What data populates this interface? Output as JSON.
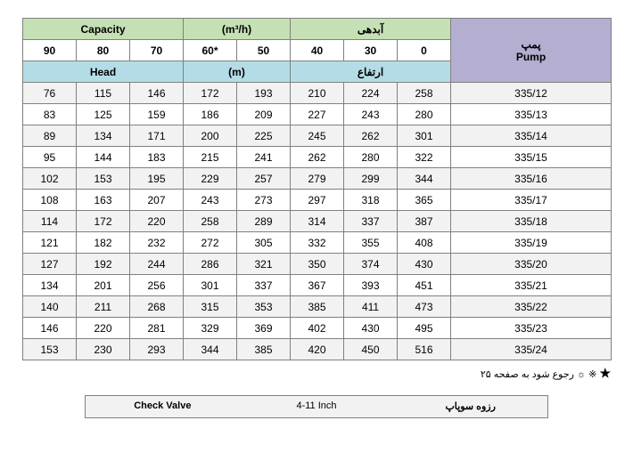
{
  "header": {
    "capacity_label_en": "Capacity",
    "capacity_unit": "(m³/h)",
    "capacity_label_fa": "آبدهی",
    "pump_label_fa": "پمپ",
    "pump_label_en": "Pump",
    "head_label_en": "Head",
    "head_unit": "(m)",
    "head_label_fa": "ارتفاع",
    "cols": [
      "90",
      "80",
      "70",
      "60*",
      "50",
      "40",
      "30",
      "0"
    ]
  },
  "rows": [
    {
      "v": [
        "76",
        "115",
        "146",
        "172",
        "193",
        "210",
        "224",
        "258"
      ],
      "pump": "335/12"
    },
    {
      "v": [
        "83",
        "125",
        "159",
        "186",
        "209",
        "227",
        "243",
        "280"
      ],
      "pump": "335/13"
    },
    {
      "v": [
        "89",
        "134",
        "171",
        "200",
        "225",
        "245",
        "262",
        "301"
      ],
      "pump": "335/14"
    },
    {
      "v": [
        "95",
        "144",
        "183",
        "215",
        "241",
        "262",
        "280",
        "322"
      ],
      "pump": "335/15"
    },
    {
      "v": [
        "102",
        "153",
        "195",
        "229",
        "257",
        "279",
        "299",
        "344"
      ],
      "pump": "335/16"
    },
    {
      "v": [
        "108",
        "163",
        "207",
        "243",
        "273",
        "297",
        "318",
        "365"
      ],
      "pump": "335/17"
    },
    {
      "v": [
        "114",
        "172",
        "220",
        "258",
        "289",
        "314",
        "337",
        "387"
      ],
      "pump": "335/18"
    },
    {
      "v": [
        "121",
        "182",
        "232",
        "272",
        "305",
        "332",
        "355",
        "408"
      ],
      "pump": "335/19"
    },
    {
      "v": [
        "127",
        "192",
        "244",
        "286",
        "321",
        "350",
        "374",
        "430"
      ],
      "pump": "335/20"
    },
    {
      "v": [
        "134",
        "201",
        "256",
        "301",
        "337",
        "367",
        "393",
        "451"
      ],
      "pump": "335/21"
    },
    {
      "v": [
        "140",
        "211",
        "268",
        "315",
        "353",
        "385",
        "411",
        "473"
      ],
      "pump": "335/22"
    },
    {
      "v": [
        "146",
        "220",
        "281",
        "329",
        "369",
        "402",
        "430",
        "495"
      ],
      "pump": "335/23"
    },
    {
      "v": [
        "153",
        "230",
        "293",
        "344",
        "385",
        "420",
        "450",
        "516"
      ],
      "pump": "335/24"
    }
  ],
  "footnote": {
    "star": "★",
    "symbols": "※ ☼",
    "text": "رجوع شود به صفحه ۲۵"
  },
  "bottom": {
    "check_valve": "Check Valve",
    "size": "4-11 Inch",
    "fa": "رزوه سوپاپ"
  },
  "colors": {
    "green": "#c5e0b4",
    "blue": "#b4dce6",
    "purple": "#b4aed0",
    "stripe": "#f2f2f2",
    "border": "#808080"
  },
  "col_widths": {
    "data": 60,
    "pump": 180
  }
}
